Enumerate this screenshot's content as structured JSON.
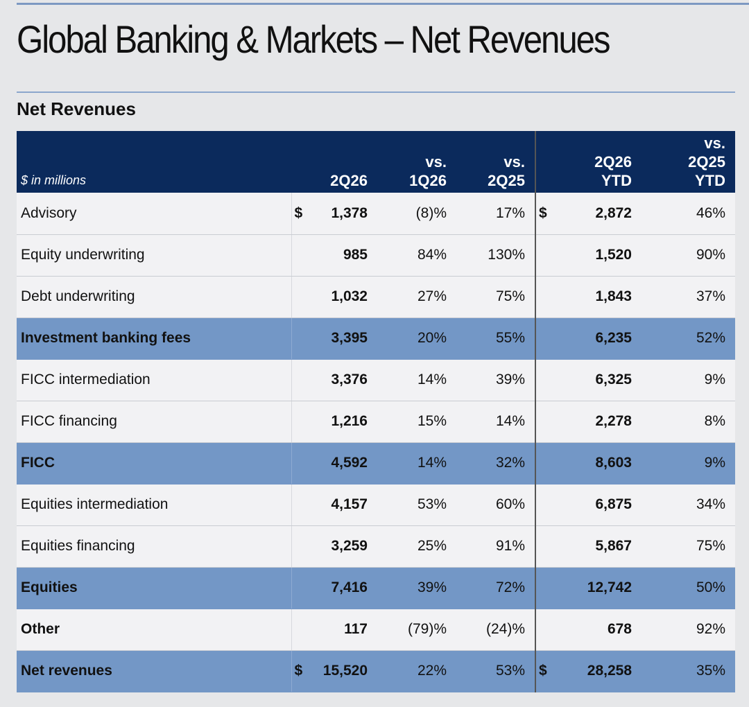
{
  "title": "Global Banking & Markets – Net Revenues",
  "section_title": "Net Revenues",
  "header": {
    "units": "$ in millions",
    "col_2q26": "2Q26",
    "col_vs1q26_a": "vs.",
    "col_vs1q26_b": "1Q26",
    "col_vs2q25_a": "vs.",
    "col_vs2q25_b": "2Q25",
    "col_ytd_a": "2Q26",
    "col_ytd_b": "YTD",
    "col_vsytd_a": "vs.",
    "col_vsytd_b": "2Q25",
    "col_vsytd_c": "YTD"
  },
  "rows": [
    {
      "label": "Advisory",
      "cur1": "$",
      "q": "1,378",
      "vs1q26": "(8)%",
      "vs2q25": "17%",
      "cur2": "$",
      "ytd": "2,872",
      "vsytd": "46%"
    },
    {
      "label": "Equity underwriting",
      "cur1": "",
      "q": "985",
      "vs1q26": "84%",
      "vs2q25": "130%",
      "cur2": "",
      "ytd": "1,520",
      "vsytd": "90%"
    },
    {
      "label": "Debt underwriting",
      "cur1": "",
      "q": "1,032",
      "vs1q26": "27%",
      "vs2q25": "75%",
      "cur2": "",
      "ytd": "1,843",
      "vsytd": "37%"
    },
    {
      "label": "Investment banking fees",
      "cur1": "",
      "q": "3,395",
      "vs1q26": "20%",
      "vs2q25": "55%",
      "cur2": "",
      "ytd": "6,235",
      "vsytd": "52%"
    },
    {
      "label": "FICC intermediation",
      "cur1": "",
      "q": "3,376",
      "vs1q26": "14%",
      "vs2q25": "39%",
      "cur2": "",
      "ytd": "6,325",
      "vsytd": "9%"
    },
    {
      "label": "FICC financing",
      "cur1": "",
      "q": "1,216",
      "vs1q26": "15%",
      "vs2q25": "14%",
      "cur2": "",
      "ytd": "2,278",
      "vsytd": "8%"
    },
    {
      "label": "FICC",
      "cur1": "",
      "q": "4,592",
      "vs1q26": "14%",
      "vs2q25": "32%",
      "cur2": "",
      "ytd": "8,603",
      "vsytd": "9%"
    },
    {
      "label": "Equities intermediation",
      "cur1": "",
      "q": "4,157",
      "vs1q26": "53%",
      "vs2q25": "60%",
      "cur2": "",
      "ytd": "6,875",
      "vsytd": "34%"
    },
    {
      "label": "Equities financing",
      "cur1": "",
      "q": "3,259",
      "vs1q26": "25%",
      "vs2q25": "91%",
      "cur2": "",
      "ytd": "5,867",
      "vsytd": "75%"
    },
    {
      "label": "Equities",
      "cur1": "",
      "q": "7,416",
      "vs1q26": "39%",
      "vs2q25": "72%",
      "cur2": "",
      "ytd": "12,742",
      "vsytd": "50%"
    },
    {
      "label": "Other",
      "cur1": "",
      "q": "117",
      "vs1q26": "(79)%",
      "vs2q25": "(24)%",
      "cur2": "",
      "ytd": "678",
      "vsytd": "92%"
    },
    {
      "label": "Net revenues",
      "cur1": "$",
      "q": "15,520",
      "vs1q26": "22%",
      "vs2q25": "53%",
      "cur2": "$",
      "ytd": "28,258",
      "vsytd": "35%"
    }
  ],
  "colors": {
    "header_bg": "#0b2a5c",
    "subtotal_bg": "#7397c6",
    "row_bg": "#f2f2f4",
    "page_bg": "#e6e7e9",
    "rule": "#8ba6cc"
  }
}
